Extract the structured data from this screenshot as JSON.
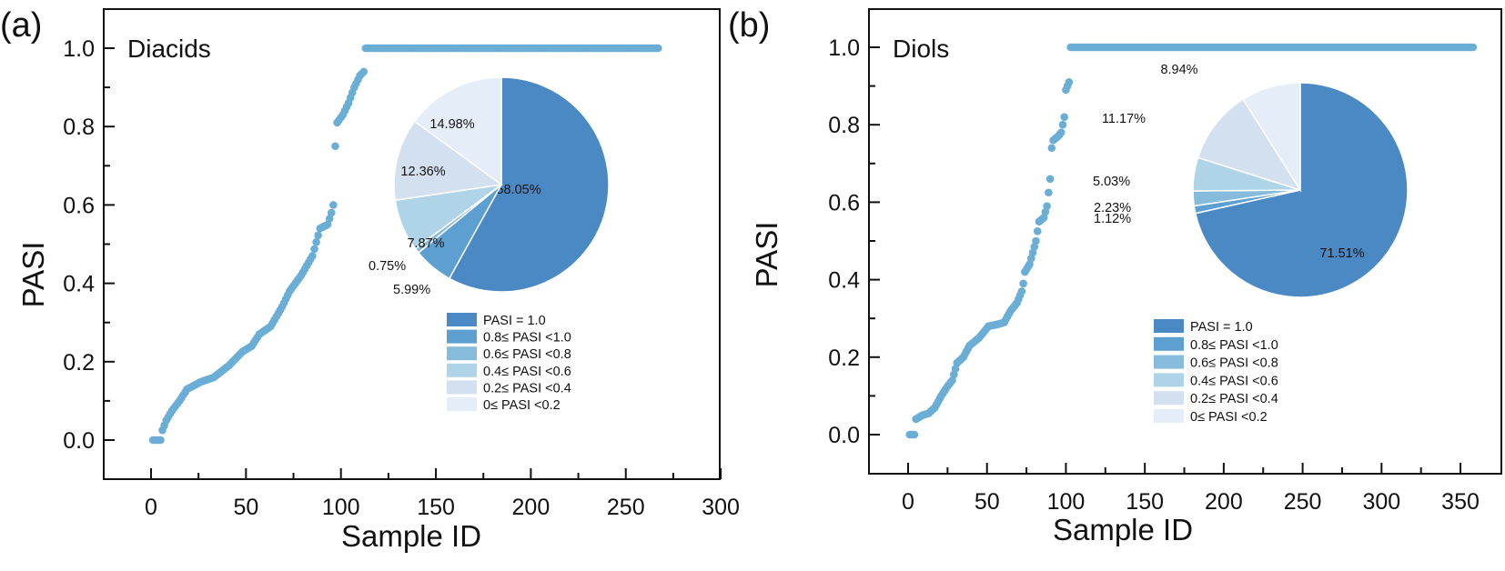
{
  "chart_data": [
    {
      "id": "a",
      "type": "scatter",
      "panel_label": "(a)",
      "title": "Diacids",
      "xlabel": "Sample ID",
      "ylabel": "PASI",
      "xlim": [
        -25,
        300
      ],
      "ylim": [
        -0.1,
        1.1
      ],
      "xticks": [
        0,
        50,
        100,
        150,
        200,
        250,
        300
      ],
      "yticks": [
        0.0,
        0.2,
        0.4,
        0.6,
        0.8,
        1.0
      ],
      "tick_labels_x": [
        "0",
        "50",
        "100",
        "150",
        "200",
        "250",
        "300"
      ],
      "tick_labels_y": [
        "0.0",
        "0.2",
        "0.4",
        "0.6",
        "0.8",
        "1.0"
      ],
      "grid": false,
      "marker_color": "#6aaed6",
      "n_samples": 267,
      "curve_keypoints": [
        [
          0,
          0.0
        ],
        [
          4,
          0.0
        ],
        [
          5,
          0.025
        ],
        [
          7,
          0.05
        ],
        [
          10,
          0.075
        ],
        [
          14,
          0.1
        ],
        [
          18,
          0.13
        ],
        [
          25,
          0.148
        ],
        [
          32,
          0.16
        ],
        [
          40,
          0.19
        ],
        [
          47,
          0.225
        ],
        [
          52,
          0.24
        ],
        [
          56,
          0.27
        ],
        [
          62,
          0.29
        ],
        [
          68,
          0.34
        ],
        [
          72,
          0.38
        ],
        [
          78,
          0.42
        ],
        [
          84,
          0.47
        ],
        [
          88,
          0.54
        ],
        [
          92,
          0.55
        ],
        [
          94,
          0.58
        ],
        [
          95,
          0.6
        ],
        [
          96,
          0.75
        ],
        [
          97,
          0.81
        ],
        [
          100,
          0.83
        ],
        [
          103,
          0.86
        ],
        [
          106,
          0.9
        ],
        [
          109,
          0.93
        ],
        [
          111,
          0.94
        ]
      ],
      "constant_segment": {
        "from": 112,
        "to": 266,
        "value": 1.0
      },
      "inset_pie": {
        "start": "12 o'clock",
        "direction": "clockwise",
        "slices": [
          {
            "label": "PASI = 1.0",
            "value": 58.05,
            "text": "58.05%",
            "color": "#4a89c4"
          },
          {
            "label": "0.8≤ PASI <1.0",
            "value": 5.99,
            "text": "5.99%",
            "color": "#5d9fd0"
          },
          {
            "label": "0.6≤ PASI <0.8",
            "value": 0.75,
            "text": "0.75%",
            "color": "#86bbdc"
          },
          {
            "label": "0.4≤ PASI <0.6",
            "value": 7.87,
            "text": "7.87%",
            "color": "#b0d4e7"
          },
          {
            "label": "0.2≤ PASI <0.4",
            "value": 12.36,
            "text": "12.36%",
            "color": "#d3e0ef"
          },
          {
            "label": "0≤ PASI <0.2",
            "value": 14.98,
            "text": "14.98%",
            "color": "#e5eef8"
          }
        ]
      },
      "legend": [
        "PASI = 1.0",
        "0.8≤ PASI <1.0",
        "0.6≤ PASI <0.8",
        "0.4≤ PASI <0.6",
        "0.2≤ PASI <0.4",
        "0≤ PASI <0.2"
      ]
    },
    {
      "id": "b",
      "type": "scatter",
      "panel_label": "(b)",
      "title": "Diols",
      "xlabel": "Sample ID",
      "ylabel": "PASI",
      "xlim": [
        -25,
        375
      ],
      "ylim": [
        -0.1,
        1.1
      ],
      "xticks": [
        0,
        50,
        100,
        150,
        200,
        250,
        300,
        350
      ],
      "yticks": [
        0.0,
        0.2,
        0.4,
        0.6,
        0.8,
        1.0
      ],
      "tick_labels_x": [
        "0",
        "50",
        "100",
        "150",
        "200",
        "250",
        "300",
        "350"
      ],
      "tick_labels_y": [
        "0.0",
        "0.2",
        "0.4",
        "0.6",
        "0.8",
        "1.0"
      ],
      "grid": false,
      "marker_color": "#6aaed6",
      "n_samples": 358,
      "curve_keypoints": [
        [
          0,
          0.0
        ],
        [
          3,
          0.0
        ],
        [
          4,
          0.04
        ],
        [
          8,
          0.05
        ],
        [
          12,
          0.055
        ],
        [
          16,
          0.07
        ],
        [
          20,
          0.1
        ],
        [
          24,
          0.125
        ],
        [
          27,
          0.14
        ],
        [
          30,
          0.185
        ],
        [
          34,
          0.2
        ],
        [
          38,
          0.23
        ],
        [
          44,
          0.25
        ],
        [
          50,
          0.28
        ],
        [
          56,
          0.285
        ],
        [
          60,
          0.29
        ],
        [
          64,
          0.32
        ],
        [
          68,
          0.34
        ],
        [
          71,
          0.37
        ],
        [
          72,
          0.39
        ],
        [
          73,
          0.42
        ],
        [
          76,
          0.44
        ],
        [
          78,
          0.47
        ],
        [
          80,
          0.5
        ],
        [
          82,
          0.55
        ],
        [
          85,
          0.56
        ],
        [
          87,
          0.59
        ],
        [
          89,
          0.66
        ],
        [
          90,
          0.74
        ],
        [
          91,
          0.76
        ],
        [
          94,
          0.77
        ],
        [
          96,
          0.78
        ],
        [
          97,
          0.8
        ],
        [
          98,
          0.82
        ],
        [
          99,
          0.89
        ],
        [
          101,
          0.91
        ]
      ],
      "constant_segment": {
        "from": 102,
        "to": 357,
        "value": 1.0
      },
      "inset_pie": {
        "start": "12 o'clock",
        "direction": "clockwise",
        "slices": [
          {
            "label": "PASI = 1.0",
            "value": 71.51,
            "text": "71.51%",
            "color": "#4a89c4"
          },
          {
            "label": "0.8≤ PASI <1.0",
            "value": 1.12,
            "text": "1.12%",
            "color": "#5d9fd0"
          },
          {
            "label": "0.6≤ PASI <0.8",
            "value": 2.23,
            "text": "2.23%",
            "color": "#86bbdc"
          },
          {
            "label": "0.4≤ PASI <0.6",
            "value": 5.03,
            "text": "5.03%",
            "color": "#b0d4e7"
          },
          {
            "label": "0.2≤ PASI <0.4",
            "value": 11.17,
            "text": "11.17%",
            "color": "#d3e0ef"
          },
          {
            "label": "0≤ PASI <0.2",
            "value": 8.94,
            "text": "8.94%",
            "color": "#e5eef8"
          }
        ]
      },
      "legend": [
        "PASI = 1.0",
        "0.8≤ PASI <1.0",
        "0.6≤ PASI <0.8",
        "0.4≤ PASI <0.6",
        "0.2≤ PASI <0.4",
        "0≤ PASI <0.2"
      ]
    }
  ]
}
